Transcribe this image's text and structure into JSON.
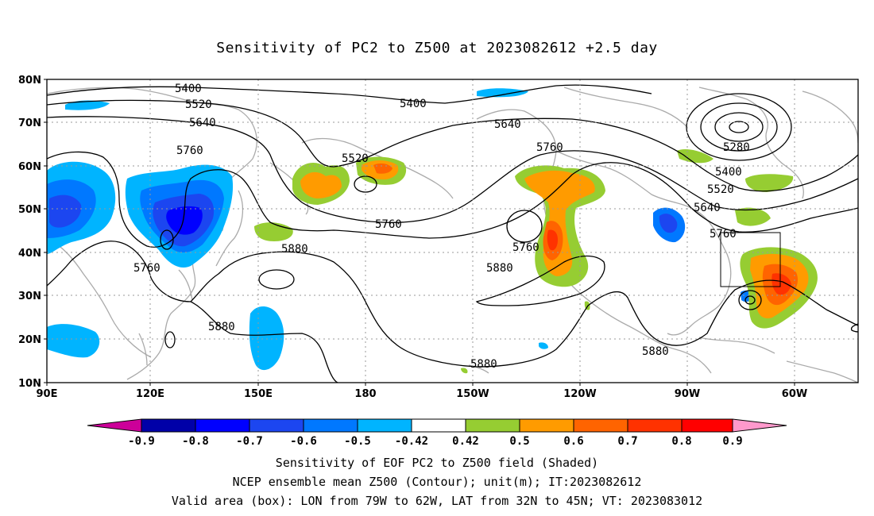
{
  "title": "Sensitivity of PC2 to Z500 at 2023082612 +2.5 day",
  "lat_ticks": [
    "80N",
    "70N",
    "60N",
    "50N",
    "40N",
    "30N",
    "20N",
    "10N"
  ],
  "lon_ticks": [
    "90E",
    "120E",
    "150E",
    "180",
    "150W",
    "120W",
    "90W",
    "60W"
  ],
  "contour_labels": [
    "5400",
    "5520",
    "5640",
    "5760",
    "5400",
    "5520",
    "5760",
    "5280",
    "5400",
    "5520",
    "5640",
    "5760",
    "5640",
    "5760",
    "5880",
    "5760",
    "5880",
    "5880",
    "5880",
    "5880"
  ],
  "colorbar": {
    "labels": [
      "-0.9",
      "-0.8",
      "-0.7",
      "-0.6",
      "-0.5",
      "-0.42",
      "0.42",
      "0.5",
      "0.6",
      "0.7",
      "0.8",
      "0.9"
    ],
    "colors": [
      "#cc0099",
      "#0000a8",
      "#0000ff",
      "#1c46f0",
      "#0078ff",
      "#00b4ff",
      "#00d2ff",
      "#ffffff",
      "#96cd32",
      "#ff9b00",
      "#ff6400",
      "#ff3200",
      "#ff0000",
      "#ff99cc"
    ]
  },
  "valid_box": {
    "lon_min": -79,
    "lon_max": -62,
    "lat_min": 32,
    "lat_max": 45
  },
  "caption": {
    "line1": "Sensitivity of EOF PC2 to Z500 field (Shaded)",
    "line2": "NCEP ensemble mean Z500 (Contour); unit(m); IT:2023082612",
    "line3": "Valid area (box): LON from 79W to 62W, LAT from 32N to 45N; VT: 2023083012"
  }
}
